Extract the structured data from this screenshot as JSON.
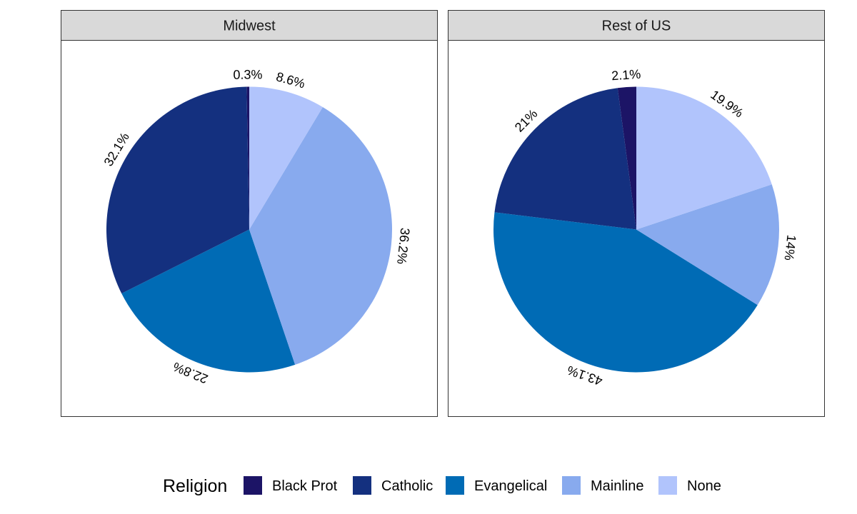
{
  "chart_data": {
    "type": "pie",
    "panels": [
      {
        "title": "Midwest",
        "slices": [
          {
            "category": "Black Prot",
            "value": 0.3,
            "label": "0.3%"
          },
          {
            "category": "Catholic",
            "value": 32.1,
            "label": "32.1%"
          },
          {
            "category": "Evangelical",
            "value": 22.8,
            "label": "22.8%"
          },
          {
            "category": "Mainline",
            "value": 36.2,
            "label": "36.2%"
          },
          {
            "category": "None",
            "value": 8.6,
            "label": "8.6%"
          }
        ]
      },
      {
        "title": "Rest of US",
        "slices": [
          {
            "category": "Black Prot",
            "value": 2.1,
            "label": "2.1%"
          },
          {
            "category": "Catholic",
            "value": 21,
            "label": "21%"
          },
          {
            "category": "Evangelical",
            "value": 43.1,
            "label": "43.1%"
          },
          {
            "category": "Mainline",
            "value": 14,
            "label": "14%"
          },
          {
            "category": "None",
            "value": 19.9,
            "label": "19.9%"
          }
        ]
      }
    ],
    "legend": {
      "title": "Religion",
      "position": "bottom",
      "entries": [
        {
          "name": "Black Prot",
          "color": "#1c1466"
        },
        {
          "name": "Catholic",
          "color": "#14307f"
        },
        {
          "name": "Evangelical",
          "color": "#006bb5"
        },
        {
          "name": "Mainline",
          "color": "#88aaee"
        },
        {
          "name": "None",
          "color": "#b1c4fc"
        }
      ]
    },
    "direction": "clockwise-from-top",
    "colors": {
      "strip_fill": "#d9d9d9",
      "panel_border": "#333333"
    }
  }
}
